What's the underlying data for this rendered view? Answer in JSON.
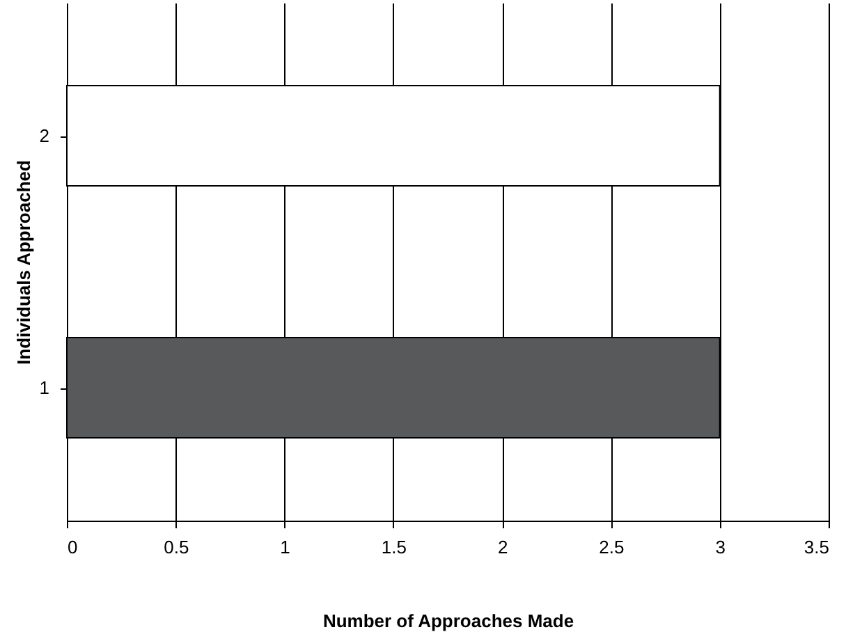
{
  "chart_data": {
    "type": "bar",
    "orientation": "horizontal",
    "xlabel": "Number of Approaches Made",
    "ylabel": "Individuals Approached",
    "categories": [
      "2",
      "1"
    ],
    "series": [
      {
        "colors": [
          "#ffffff",
          "#58595b"
        ],
        "values": [
          3,
          3
        ]
      }
    ],
    "xlim": [
      0,
      3.5
    ],
    "xticks": [
      0,
      0.5,
      1,
      1.5,
      2,
      2.5,
      3,
      3.5
    ],
    "grid": "x"
  }
}
